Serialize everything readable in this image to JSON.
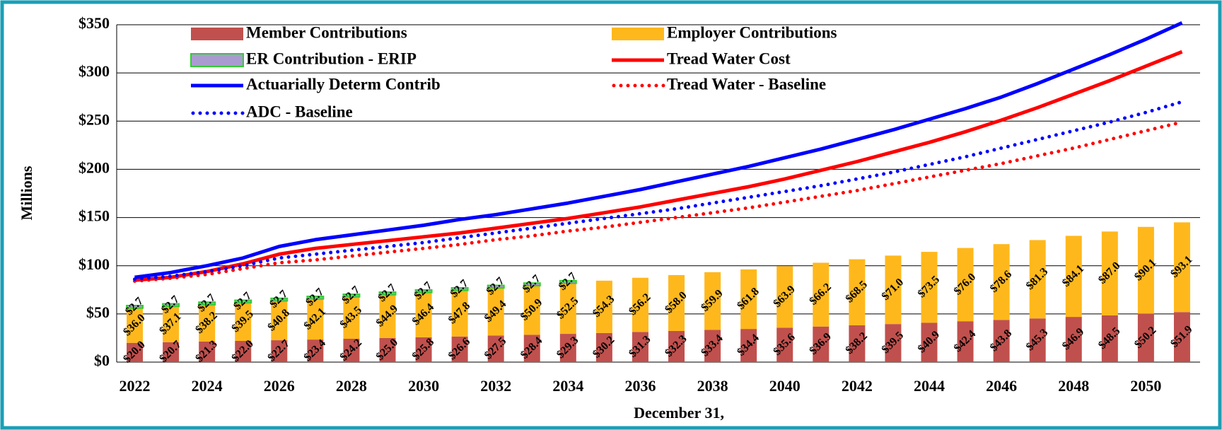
{
  "chart_data": {
    "type": "bar",
    "y_label": "Millions",
    "x_label": "December 31,",
    "categories": [
      "2022",
      null,
      "2024",
      null,
      "2026",
      null,
      "2028",
      null,
      "2030",
      null,
      "2032",
      null,
      "2034",
      null,
      "2036",
      null,
      "2038",
      null,
      "2040",
      null,
      "2042",
      null,
      "2044",
      null,
      "2046",
      null,
      "2048",
      null,
      "2050",
      null
    ],
    "ylim": [
      0,
      350
    ],
    "yticks": [
      {
        "value": 0,
        "label": "$0"
      },
      {
        "value": 50,
        "label": "$50"
      },
      {
        "value": 100,
        "label": "$100"
      },
      {
        "value": 150,
        "label": "$150"
      },
      {
        "value": 200,
        "label": "$200"
      },
      {
        "value": 250,
        "label": "$250"
      },
      {
        "value": 300,
        "label": "$300"
      },
      {
        "value": 350,
        "label": "$350"
      }
    ],
    "grid": true,
    "stacked": true,
    "series": [
      {
        "name": "Member Contributions",
        "type": "bar",
        "color": "#c0504d",
        "values": [
          20.0,
          20.7,
          21.3,
          22.0,
          22.7,
          23.4,
          24.2,
          25.0,
          25.8,
          26.6,
          27.5,
          28.4,
          29.3,
          30.2,
          31.3,
          32.3,
          33.4,
          34.4,
          35.6,
          36.9,
          38.2,
          39.5,
          40.9,
          42.4,
          43.8,
          45.3,
          46.9,
          48.5,
          50.2,
          51.9
        ],
        "value_labels": [
          "$20.0",
          "$20.7",
          "$21.3",
          "$22.0",
          "$22.7",
          "$23.4",
          "$24.2",
          "$25.0",
          "$25.8",
          "$26.6",
          "$27.5",
          "$28.4",
          "$29.3",
          "$30.2",
          "$31.3",
          "$32.3",
          "$33.4",
          "$34.4",
          "$35.6",
          "$36.9",
          "$38.2",
          "$39.5",
          "$40.9",
          "$42.4",
          "$43.8",
          "$45.3",
          "$46.9",
          "$48.5",
          "$50.2",
          "$51.9"
        ]
      },
      {
        "name": "Employer Contributions",
        "type": "bar",
        "color": "#ffb81c",
        "values": [
          36.0,
          37.1,
          38.2,
          39.5,
          40.8,
          42.1,
          43.5,
          44.9,
          46.4,
          47.8,
          49.4,
          50.9,
          52.5,
          54.3,
          56.2,
          58.0,
          59.9,
          61.8,
          63.9,
          66.2,
          68.5,
          71.0,
          73.5,
          76.0,
          78.6,
          81.3,
          84.1,
          87.0,
          90.1,
          93.1
        ],
        "value_labels": [
          "$36.0",
          "$37.1",
          "$38.2",
          "$39.5",
          "$40.8",
          "$42.1",
          "$43.5",
          "$44.9",
          "$46.4",
          "$47.8",
          "$49.4",
          "$50.9",
          "$52.5",
          "$54.3",
          "$56.2",
          "$58.0",
          "$59.9",
          "$61.8",
          "$63.9",
          "$66.2",
          "$68.5",
          "$71.0",
          "$73.5",
          "$76.0",
          "$78.6",
          "$81.3",
          "$84.1",
          "$87.0",
          "$90.1",
          "$93.1"
        ]
      },
      {
        "name": "ER Contribution - ERIP",
        "type": "bar",
        "color": "#a99bd0",
        "edge_color": "#33cc33",
        "values": [
          2.7,
          2.7,
          2.7,
          2.7,
          2.7,
          2.7,
          2.7,
          2.7,
          2.7,
          2.7,
          2.7,
          2.7,
          2.7,
          null,
          null,
          null,
          null,
          null,
          null,
          null,
          null,
          null,
          null,
          null,
          null,
          null,
          null,
          null,
          null,
          null
        ],
        "value_labels": [
          "$2.7",
          "$2.7",
          "$2.7",
          "$2.7",
          "$2.7",
          "$2.7",
          "$2.7",
          "$2.7",
          "$2.7",
          "$2.7",
          "$2.7",
          "$2.7",
          "$2.7",
          null,
          null,
          null,
          null,
          null,
          null,
          null,
          null,
          null,
          null,
          null,
          null,
          null,
          null,
          null,
          null,
          null
        ]
      },
      {
        "name": "Tread Water Cost",
        "type": "line",
        "style": "solid",
        "color": "#ff0000",
        "values": [
          85,
          88,
          94,
          102,
          112,
          118,
          122,
          126,
          130,
          134,
          139,
          144,
          149,
          155,
          161,
          168,
          175,
          182,
          190,
          199,
          208,
          218,
          228,
          239,
          251,
          264,
          278,
          292,
          307,
          322
        ]
      },
      {
        "name": "Actuarially Determ Contrib",
        "type": "line",
        "style": "solid",
        "color": "#0000ff",
        "values": [
          88,
          93,
          100,
          108,
          120,
          127,
          132,
          137,
          142,
          148,
          153,
          159,
          165,
          172,
          179,
          187,
          195,
          203,
          212,
          221,
          231,
          241,
          252,
          263,
          275,
          289,
          304,
          319,
          335,
          352
        ]
      },
      {
        "name": "Tread Water - Baseline",
        "type": "line",
        "style": "dotted",
        "color": "#ff0000",
        "values": [
          84,
          87,
          91,
          97,
          103,
          106,
          110,
          114,
          118,
          122,
          127,
          131,
          136,
          140,
          145,
          150,
          155,
          160,
          166,
          172,
          178,
          185,
          192,
          199,
          206,
          214,
          222,
          231,
          240,
          249
        ]
      },
      {
        "name": "ADC - Baseline",
        "type": "line",
        "style": "dotted",
        "color": "#0000ff",
        "values": [
          86,
          89,
          94,
          100,
          108,
          112,
          116,
          120,
          124,
          129,
          134,
          139,
          144,
          149,
          154,
          159,
          165,
          171,
          177,
          183,
          190,
          197,
          205,
          213,
          222,
          231,
          240,
          249,
          259,
          270
        ]
      }
    ]
  }
}
